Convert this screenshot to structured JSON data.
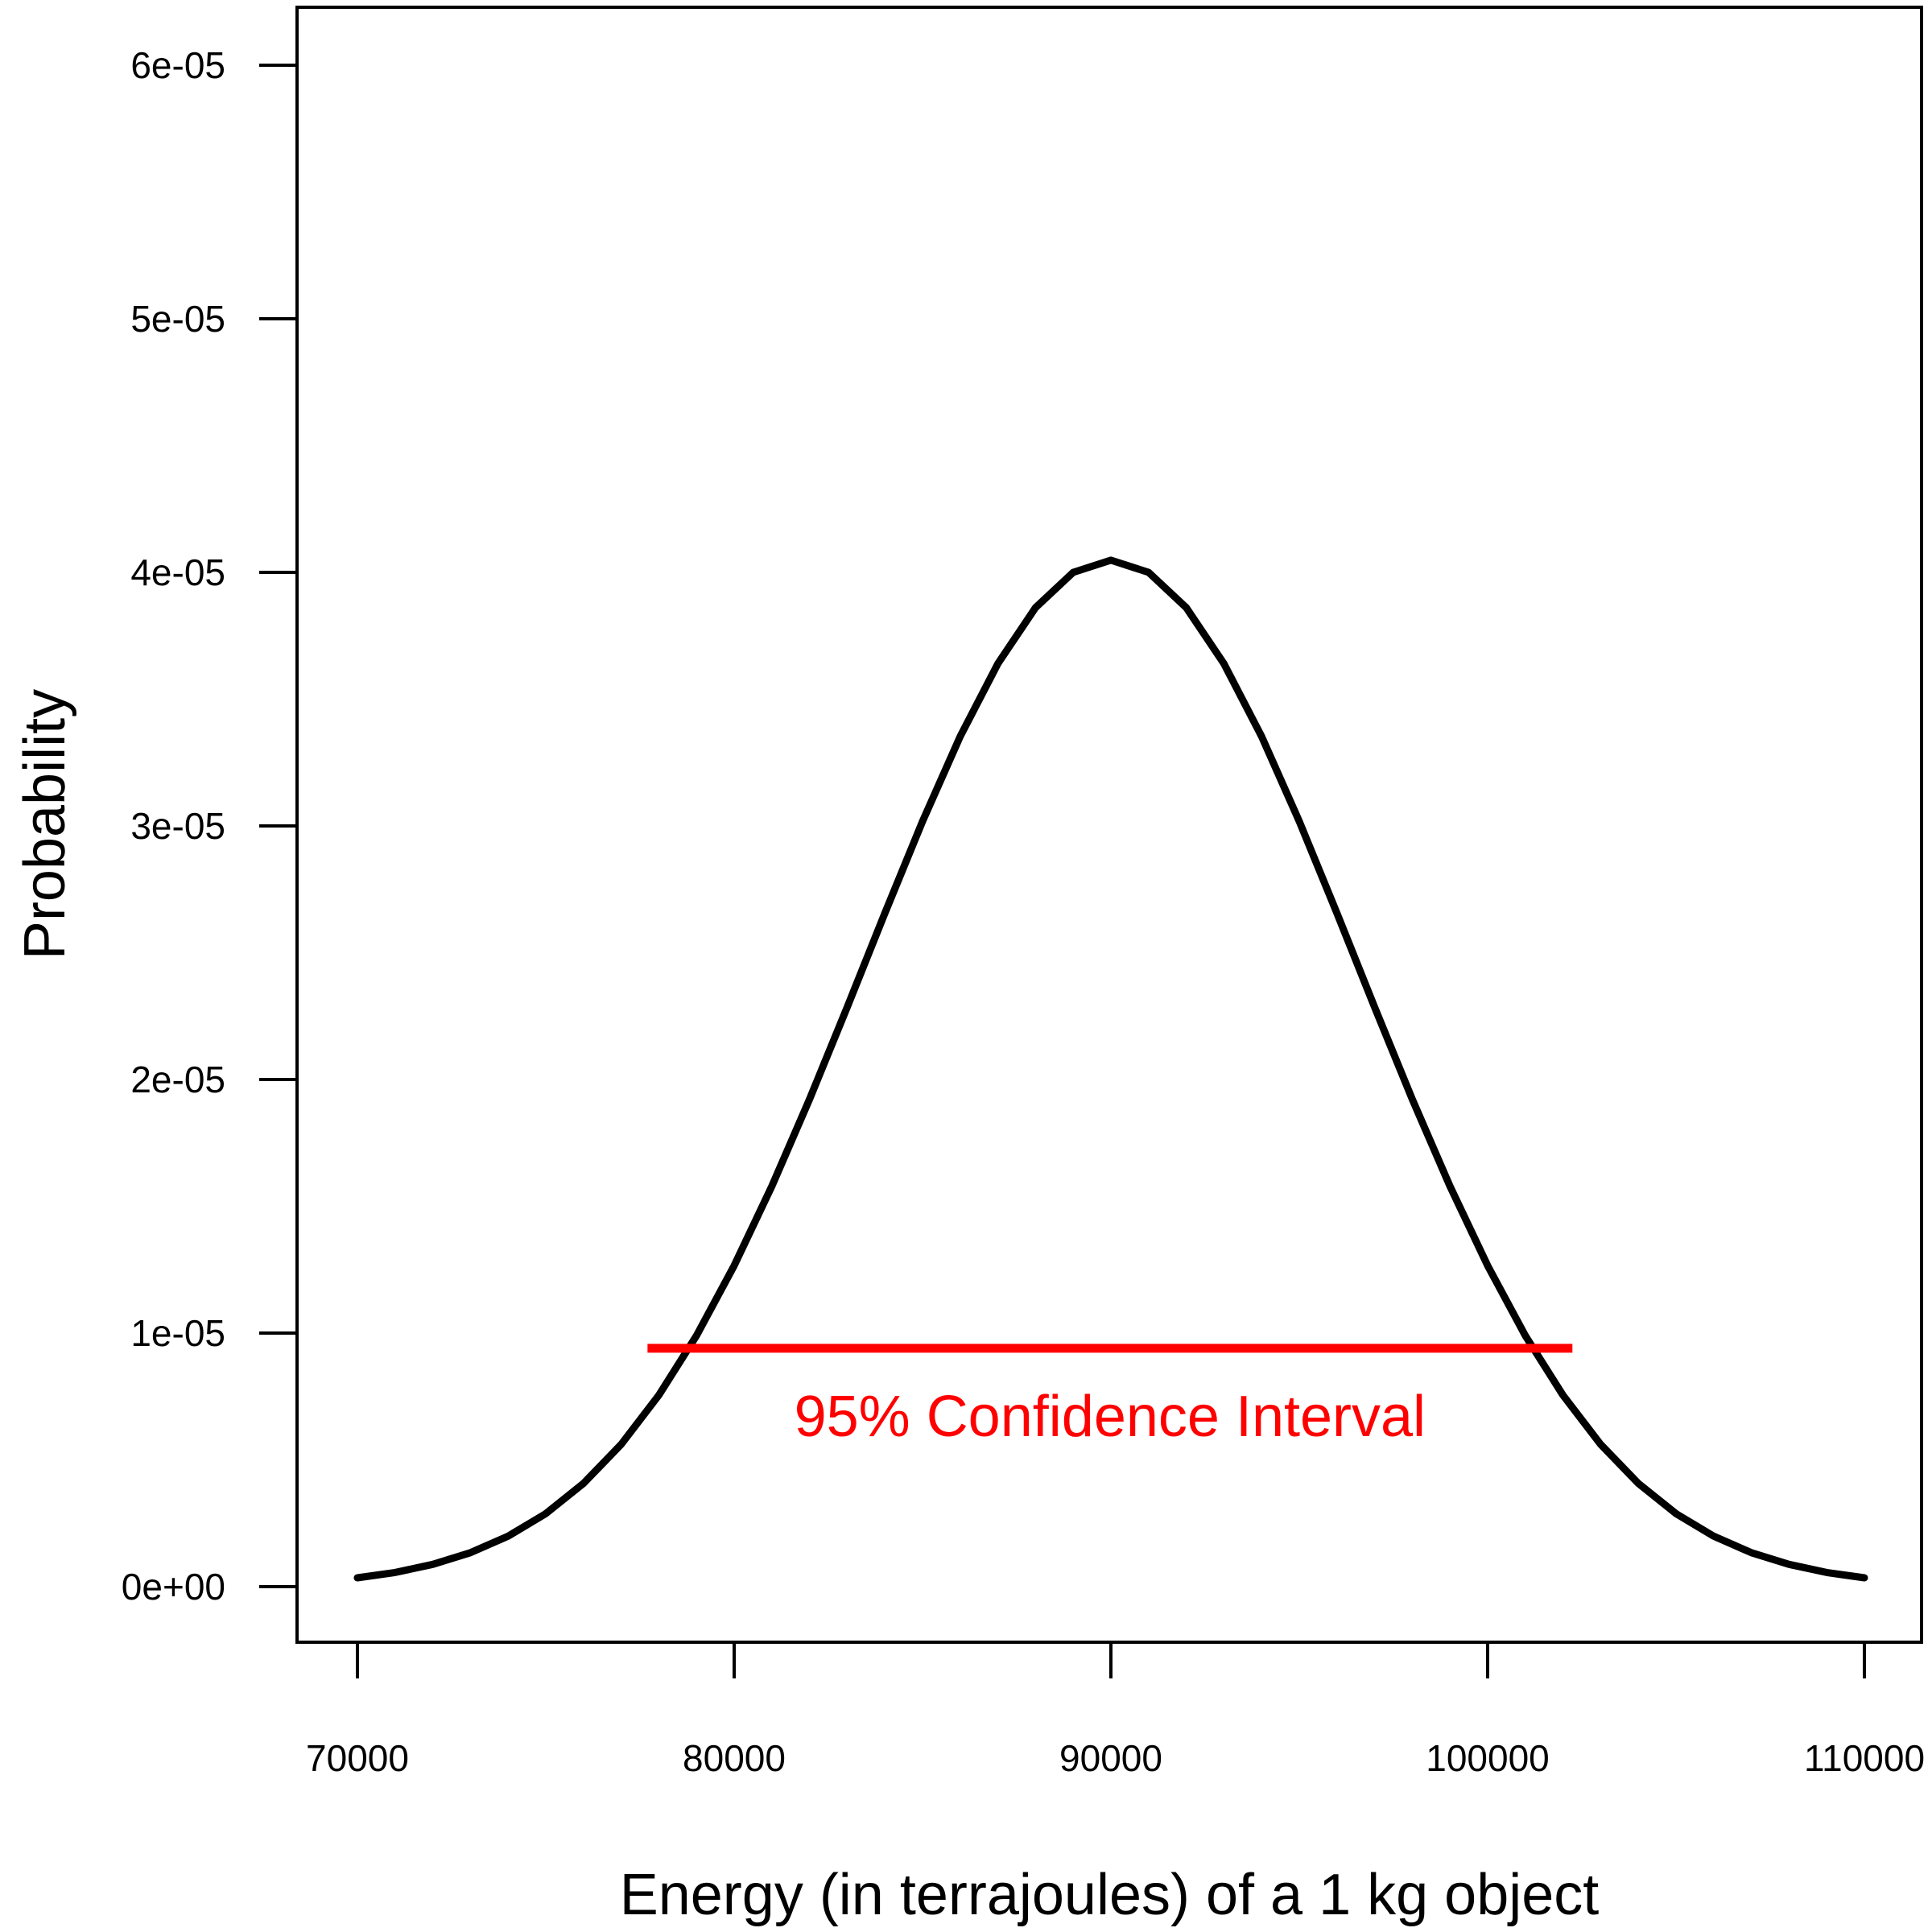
{
  "chart_data": {
    "type": "line",
    "title": "",
    "xlabel": "Energy (in terrajoules) of a 1 kg object",
    "ylabel": "Probability",
    "xlim": [
      70000,
      110000
    ],
    "ylim": [
      0,
      6.4e-05
    ],
    "x_ticks": [
      70000,
      80000,
      90000,
      100000,
      110000
    ],
    "x_tick_labels": [
      "70000",
      "80000",
      "90000",
      "100000",
      "110000"
    ],
    "y_ticks": [
      0,
      1e-05,
      2e-05,
      3e-05,
      4e-05,
      5e-05,
      6e-05
    ],
    "y_tick_labels": [
      "0e+00",
      "1e-05",
      "2e-05",
      "3e-05",
      "4e-05",
      "5e-05",
      "6e-05"
    ],
    "grid": false,
    "legend": "none",
    "series": [
      {
        "x": [
          70000,
          71000,
          72000,
          73000,
          74000,
          75000,
          76000,
          77000,
          78000,
          79000,
          80000,
          81000,
          82000,
          83000,
          84000,
          85000,
          86000,
          87000,
          88000,
          89000,
          90000,
          91000,
          92000,
          93000,
          94000,
          95000,
          96000,
          97000,
          98000,
          99000,
          100000,
          101000,
          102000,
          103000,
          104000,
          105000,
          106000,
          107000,
          108000,
          109000,
          110000
        ],
        "y": [
          3.5e-07,
          5.6e-07,
          8.8e-07,
          1.34e-06,
          1.99e-06,
          2.88e-06,
          4.07e-06,
          5.61e-06,
          7.55e-06,
          9.9e-06,
          1.266e-05,
          1.579e-05,
          1.922e-05,
          2.285e-05,
          2.656e-05,
          3.018e-05,
          3.353e-05,
          3.64e-05,
          3.861e-05,
          4e-05,
          4.048e-05,
          4e-05,
          3.861e-05,
          3.64e-05,
          3.353e-05,
          3.018e-05,
          2.656e-05,
          2.285e-05,
          1.922e-05,
          1.579e-05,
          1.266e-05,
          9.9e-06,
          7.55e-06,
          5.61e-06,
          4.07e-06,
          2.88e-06,
          1.99e-06,
          1.34e-06,
          8.8e-07,
          5.6e-07,
          3.5e-07
        ],
        "color": "#000000"
      }
    ],
    "confidence_interval": {
      "x_start": 77700,
      "x_end": 102250,
      "y": 9.4e-06,
      "color": "#ff0000",
      "label": "95% Confidence Interval"
    }
  }
}
